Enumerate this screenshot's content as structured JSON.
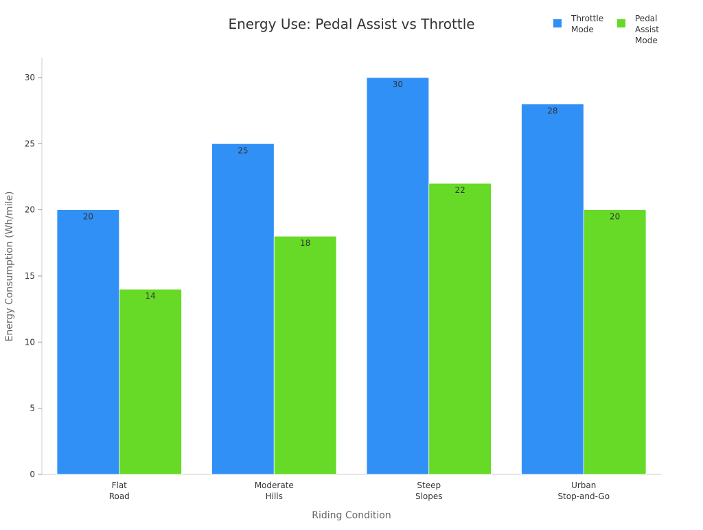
{
  "chart_data": {
    "type": "bar",
    "title": "Energy Use: Pedal Assist vs Throttle",
    "xlabel": "Riding Condition",
    "ylabel": "Energy Consumption (Wh/mile)",
    "categories": [
      [
        "Flat",
        "Road"
      ],
      [
        "Moderate",
        "Hills"
      ],
      [
        "Steep",
        "Slopes"
      ],
      [
        "Urban",
        "Stop-and-Go"
      ]
    ],
    "series": [
      {
        "name": "Throttle Mode",
        "legend_lines": [
          "Throttle",
          "Mode"
        ],
        "color": "#3090F6",
        "values": [
          20,
          25,
          30,
          28
        ]
      },
      {
        "name": "Pedal Assist Mode",
        "legend_lines": [
          "Pedal",
          "Assist",
          "Mode"
        ],
        "color": "#66DA26",
        "values": [
          14,
          18,
          22,
          20
        ]
      }
    ],
    "ylim": [
      0,
      31.5
    ],
    "yticks": [
      0,
      5,
      10,
      15,
      20,
      25,
      30
    ],
    "grid": false,
    "legend": "top-right",
    "data_labels": true
  }
}
